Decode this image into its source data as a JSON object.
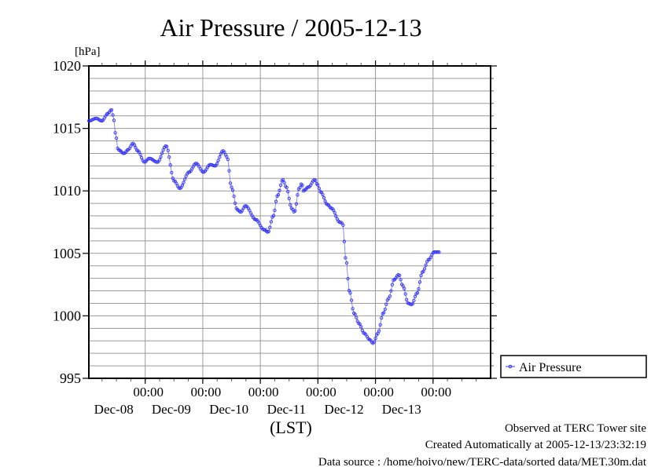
{
  "chart_data": {
    "type": "line",
    "title": "Air Pressure / 2005-12-13",
    "ylabel": "[hPa]",
    "xlabel": "(LST)",
    "ylim": [
      995,
      1020
    ],
    "yticks": [
      995,
      1000,
      1005,
      1010,
      1015,
      1020
    ],
    "ytick_labels": [
      "995",
      "1000",
      "1005",
      "1010",
      "1015",
      "1020"
    ],
    "y_minor_step": 1,
    "x_unit": "hours since Dec-07 00:00",
    "xlim": [
      0.5,
      168
    ],
    "x_minor_step_hours": 6,
    "xticks": [
      {
        "hours": 24,
        "time": "00:00",
        "date": "Dec-08"
      },
      {
        "hours": 48,
        "time": "00:00",
        "date": "Dec-09"
      },
      {
        "hours": 72,
        "time": "00:00",
        "date": "Dec-10"
      },
      {
        "hours": 96,
        "time": "00:00",
        "date": "Dec-11"
      },
      {
        "hours": 120,
        "time": "00:00",
        "date": "Dec-12"
      },
      {
        "hours": 144,
        "time": "00:00",
        "date": "Dec-13"
      }
    ],
    "grid": true,
    "legend_position": "right",
    "series": [
      {
        "name": "Air Pressure",
        "color": "#3333ff",
        "marker": "circle",
        "sampling_hours": 0.5,
        "keypoints_hours": [
          0.5,
          3.6,
          5.9,
          8.5,
          9.9,
          10.7,
          11.6,
          12.7,
          15.2,
          16.9,
          18.9,
          20.9,
          23.7,
          25.7,
          29.1,
          32.7,
          36.1,
          38.4,
          42.3,
          45.2,
          48.3,
          51.1,
          53.1,
          56.5,
          58.2,
          59.9,
          62.4,
          63.8,
          65.8,
          70.1,
          73.5,
          75.2,
          77.4,
          79.1,
          81.4,
          82.8,
          85.1,
          86.2,
          88.2,
          89.3,
          89.9,
          92.1,
          94.7,
          95.8,
          97.2,
          100.0,
          101.7,
          105.1,
          106.3,
          107.7,
          109.1,
          111.1,
          113.1,
          115.3,
          117.6,
          119.0,
          121.0,
          123.2,
          125.5,
          127.8,
          129.7,
          131.4,
          133.7,
          135.1,
          137.3,
          139.6,
          142.2,
          144.4,
          146.5
        ],
        "keypoints_values": [
          1015.6,
          1015.8,
          1015.6,
          1016.2,
          1016.5,
          1016.0,
          1014.6,
          1013.3,
          1013.0,
          1013.3,
          1013.8,
          1013.2,
          1012.3,
          1012.6,
          1012.3,
          1013.6,
          1010.8,
          1010.2,
          1011.5,
          1012.2,
          1011.5,
          1012.1,
          1012.0,
          1013.2,
          1012.7,
          1010.3,
          1008.5,
          1008.3,
          1008.8,
          1007.7,
          1006.9,
          1006.7,
          1008.0,
          1009.6,
          1010.9,
          1010.3,
          1008.6,
          1008.3,
          1010.2,
          1010.6,
          1010.0,
          1010.3,
          1010.9,
          1010.5,
          1009.9,
          1008.9,
          1008.6,
          1007.5,
          1007.4,
          1004.5,
          1002.0,
          1000.2,
          999.4,
          998.6,
          998.1,
          997.8,
          998.6,
          1000.2,
          1001.4,
          1002.9,
          1003.3,
          1002.4,
          1001.0,
          1000.9,
          1001.8,
          1003.5,
          1004.5,
          1005.1,
          1005.1
        ]
      }
    ]
  },
  "footer": {
    "observed": "Observed at TERC Tower site",
    "created": "Created Automatically at 2005-12-13/23:32:19",
    "source": "Data source : /home/hoivo/new/TERC-data/sorted  data/MET.30m.dat"
  }
}
